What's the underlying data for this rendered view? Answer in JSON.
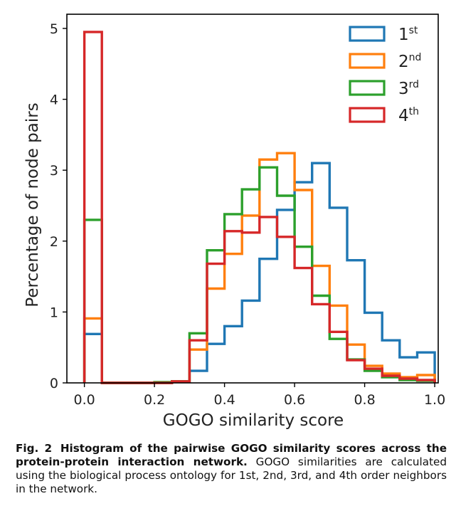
{
  "chart_data": {
    "type": "histogram-step",
    "title": "",
    "xlabel": "GOGO similarity score",
    "ylabel": "Percentage of node pairs",
    "xlim": [
      -0.05,
      1.01
    ],
    "ylim": [
      0,
      5.2
    ],
    "xticks": [
      "0.0",
      "0.2",
      "0.4",
      "0.6",
      "0.8",
      "1.0"
    ],
    "xtick_values": [
      0.0,
      0.2,
      0.4,
      0.6,
      0.8,
      1.0
    ],
    "yticks": [
      "0",
      "1",
      "2",
      "3",
      "4",
      "5"
    ],
    "ytick_values": [
      0,
      1,
      2,
      3,
      4,
      5
    ],
    "legend_position": "top-right",
    "bin_edges": [
      0.0,
      0.05,
      0.1,
      0.15,
      0.2,
      0.25,
      0.3,
      0.35,
      0.4,
      0.45,
      0.5,
      0.55,
      0.6,
      0.65,
      0.7,
      0.75,
      0.8,
      0.85,
      0.9,
      0.95,
      1.0
    ],
    "series": [
      {
        "name": "1",
        "sup": "st",
        "color": "#1f77b4",
        "values": [
          0.69,
          0.0,
          0.0,
          0.0,
          0.0,
          0.02,
          0.17,
          0.55,
          0.8,
          1.16,
          1.75,
          2.44,
          2.83,
          3.1,
          2.47,
          1.73,
          0.99,
          0.6,
          0.36,
          0.43
        ]
      },
      {
        "name": "2",
        "sup": "nd",
        "color": "#ff7f0e",
        "values": [
          0.91,
          0.0,
          0.0,
          0.0,
          0.0,
          0.02,
          0.47,
          1.33,
          1.82,
          2.36,
          3.15,
          3.24,
          2.72,
          1.65,
          1.09,
          0.54,
          0.24,
          0.13,
          0.08,
          0.11
        ]
      },
      {
        "name": "3",
        "sup": "rd",
        "color": "#2ca02c",
        "values": [
          2.3,
          0.0,
          0.0,
          0.0,
          0.01,
          0.02,
          0.7,
          1.87,
          2.38,
          2.73,
          3.04,
          2.64,
          1.92,
          1.23,
          0.62,
          0.33,
          0.17,
          0.08,
          0.04,
          0.03
        ]
      },
      {
        "name": "4",
        "sup": "th",
        "color": "#d62728",
        "values": [
          4.95,
          0.0,
          0.0,
          0.0,
          0.0,
          0.02,
          0.6,
          1.68,
          2.14,
          2.12,
          2.34,
          2.06,
          1.62,
          1.11,
          0.72,
          0.32,
          0.2,
          0.1,
          0.06,
          0.04
        ]
      }
    ]
  },
  "caption": {
    "figure_label": "Fig. 2",
    "bold_text": "Histogram of the pairwise GOGO similarity scores across the protein-protein interaction network.",
    "body_text": "GOGO similarities are calculated using the biological process ontology for 1st, 2nd, 3rd, and 4th order neighbors in the network."
  }
}
